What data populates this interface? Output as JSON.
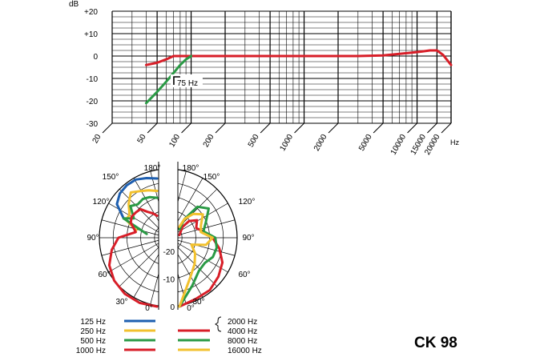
{
  "product": {
    "model": "CK 98"
  },
  "chart_data": [
    {
      "type": "line",
      "title": "",
      "ylabel": "dB",
      "xlabel": "Hz",
      "xscale": "log",
      "xlim": [
        20,
        20000
      ],
      "ylim": [
        -30,
        20
      ],
      "yticks": [
        "+20",
        "+10",
        "0",
        "-10",
        "-20",
        "-30"
      ],
      "xticks": [
        "20",
        "50",
        "100",
        "200",
        "500",
        "1000",
        "2000",
        "5000",
        "10000",
        "15000",
        "20000"
      ],
      "grid": true,
      "series": [
        {
          "color": "#d81e28",
          "x": [
            40,
            50,
            60,
            70,
            80,
            100,
            150,
            300,
            1000,
            3000,
            5000,
            7000,
            9000,
            11000,
            13000,
            15000,
            17000,
            20000
          ],
          "y": [
            -4,
            -3,
            -1.5,
            0,
            0,
            0,
            0,
            0,
            0,
            0,
            0.3,
            1,
            1.5,
            2,
            2.5,
            2.5,
            0.5,
            -4
          ]
        },
        {
          "color": "#2a9a45",
          "x": [
            40,
            50,
            60,
            70,
            80,
            90,
            100
          ],
          "y": [
            -21,
            -16,
            -11.5,
            -7.5,
            -4,
            -1.5,
            0
          ]
        }
      ],
      "annotations": [
        {
          "text": "75 Hz"
        }
      ]
    },
    {
      "type": "polar",
      "angle_labels": [
        "0°",
        "30°",
        "60°",
        "90°",
        "120°",
        "150°",
        "180°"
      ],
      "radial_labels": [
        "0",
        "-10",
        "-20"
      ],
      "legend_left": [
        {
          "label": "125 Hz",
          "color": "#1e5fb0"
        },
        {
          "label": "250 Hz",
          "color": "#f2c12e"
        },
        {
          "label": "500 Hz",
          "color": "#2a9a45"
        },
        {
          "label": "1000 Hz",
          "color": "#d81e28"
        }
      ],
      "legend_right": [
        {
          "label": "2000 Hz",
          "color": ""
        },
        {
          "label": "4000 Hz",
          "color": "#d81e28"
        },
        {
          "label": "8000 Hz",
          "color": "#2a9a45"
        },
        {
          "label": "16000 Hz",
          "color": "#f2c12e"
        }
      ],
      "series_left": [
        {
          "color": "#1e5fb0",
          "angles": [
            120,
            130,
            140,
            150,
            160,
            170,
            180
          ],
          "db": [
            -11,
            -6,
            -4,
            -3,
            -2.5,
            -3,
            -3.5
          ]
        },
        {
          "color": "#f2c12e",
          "angles": [
            110,
            120,
            130,
            140,
            150,
            160,
            170,
            180
          ],
          "db": [
            -17,
            -12,
            -12,
            -9,
            -6,
            -7,
            -7.5,
            -8
          ]
        },
        {
          "color": "#2a9a45",
          "angles": [
            110,
            120,
            130,
            140,
            150,
            160,
            170,
            180
          ],
          "db": [
            -21,
            -11,
            -14,
            -10,
            -11,
            -10,
            -10,
            -10.5
          ]
        },
        {
          "color": "#d81e28",
          "angles": [
            0,
            15,
            30,
            45,
            60,
            75,
            90,
            105,
            120,
            130,
            140,
            150,
            160,
            170,
            180
          ],
          "db": [
            0,
            -0.5,
            -1.5,
            -3,
            -5,
            -8,
            -11,
            -17,
            -14,
            -13,
            -13,
            -13,
            -15,
            -16,
            -17
          ]
        }
      ],
      "series_right": [
        {
          "color": "#d81e28",
          "angles": [
            0,
            15,
            30,
            45,
            60,
            75,
            90,
            105,
            120,
            135,
            150,
            165,
            180
          ],
          "db": [
            0,
            -2,
            -3,
            -5,
            -7,
            -10,
            -13,
            -16,
            -18,
            -16,
            -18,
            -21,
            -24
          ]
        },
        {
          "color": "#2a9a45",
          "angles": [
            0,
            15,
            30,
            45,
            60,
            75,
            90,
            105,
            120,
            135,
            150,
            165,
            180
          ],
          "db": [
            0,
            -7,
            -11,
            -12,
            -11,
            -11,
            -12,
            -16,
            -14,
            -10,
            -12,
            -18,
            -22
          ]
        },
        {
          "color": "#f2c12e",
          "angles": [
            0,
            15,
            30,
            45,
            60,
            75,
            90,
            105,
            120,
            135,
            150,
            165,
            180
          ],
          "db": [
            0,
            -10,
            -14,
            -17,
            -20,
            -15,
            -13,
            -17,
            -16,
            -13,
            -15,
            -18,
            -21
          ]
        }
      ]
    }
  ]
}
